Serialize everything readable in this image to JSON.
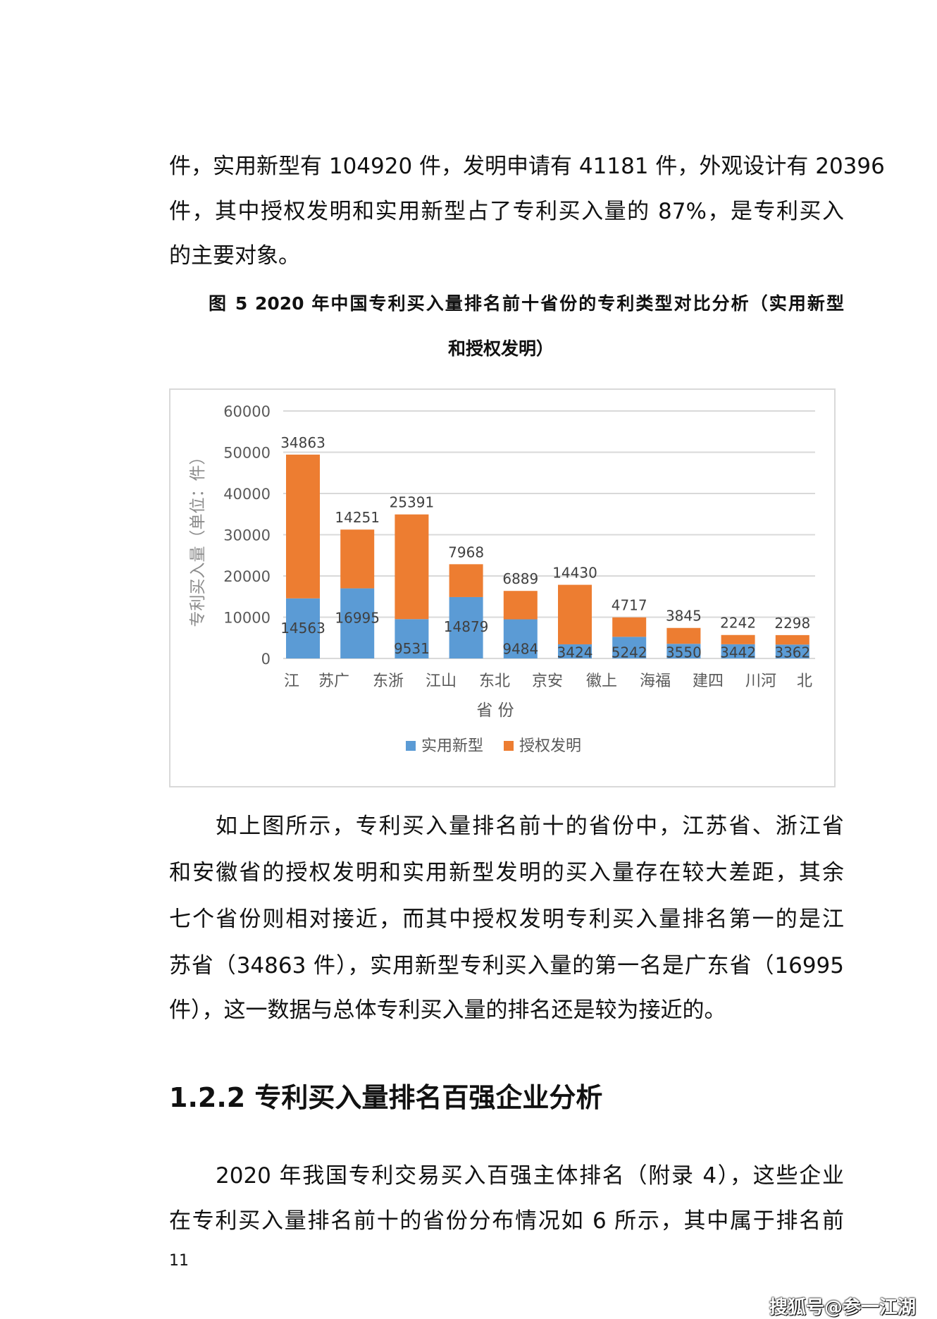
{
  "para1": [
    "件，实用新型有 104920 件，发明申请有 41181 件，外观设计有 20396",
    "件，其中授权发明和实用新型占了专利买入量的 87%，是专利买入",
    "的主要对象。"
  ],
  "caption": [
    "图  5 2020 年中国专利买入量排名前十省份的专利类型对比分析（实用新型",
    "和授权发明）"
  ],
  "para2": [
    "如上图所示，专利买入量排名前十的省份中，江苏省、浙江省",
    "和安徽省的授权发明和实用新型发明的买入量存在较大差距，其余",
    "七个省份则相对接近，而其中授权发明专利买入量排名第一的是江",
    "苏省（34863 件），实用新型专利买入量的第一名是广东省（16995",
    "件），这一数据与总体专利买入量的排名还是较为接近的。"
  ],
  "heading": "1.2.2 专利买入量排名百强企业分析",
  "para3": [
    "2020 年我国专利交易买入百强主体排名（附录 4），这些企业",
    "在专利买入量排名前十的省份分布情况如 6 所示，其中属于排名前"
  ],
  "page_number": "11",
  "watermark": "搜狐号@参一江湖",
  "chart_data": {
    "type": "bar",
    "stacked": true,
    "title": "",
    "xlabel": "省  份",
    "ylabel": "专利买入量（单位：件）",
    "ylim": [
      0,
      60000
    ],
    "yticks": [
      "0",
      "10000",
      "20000",
      "30000",
      "40000",
      "50000",
      "60000"
    ],
    "tick_labels": [
      "江",
      "苏广",
      "东浙",
      "江山",
      "东北",
      "京安",
      "徽上",
      "海福",
      "建四",
      "川河",
      "北"
    ],
    "grid": true,
    "legend": "bottom",
    "series": [
      {
        "name": "实用新型",
        "color": "#5B9BD5",
        "values": [
          14563,
          16995,
          9531,
          14879,
          9484,
          3424,
          5242,
          3550,
          3442,
          3362
        ]
      },
      {
        "name": "授权发明",
        "color": "#ED7D31",
        "values": [
          34863,
          14251,
          25391,
          7968,
          6889,
          14430,
          4717,
          3845,
          2242,
          2298
        ]
      }
    ]
  }
}
